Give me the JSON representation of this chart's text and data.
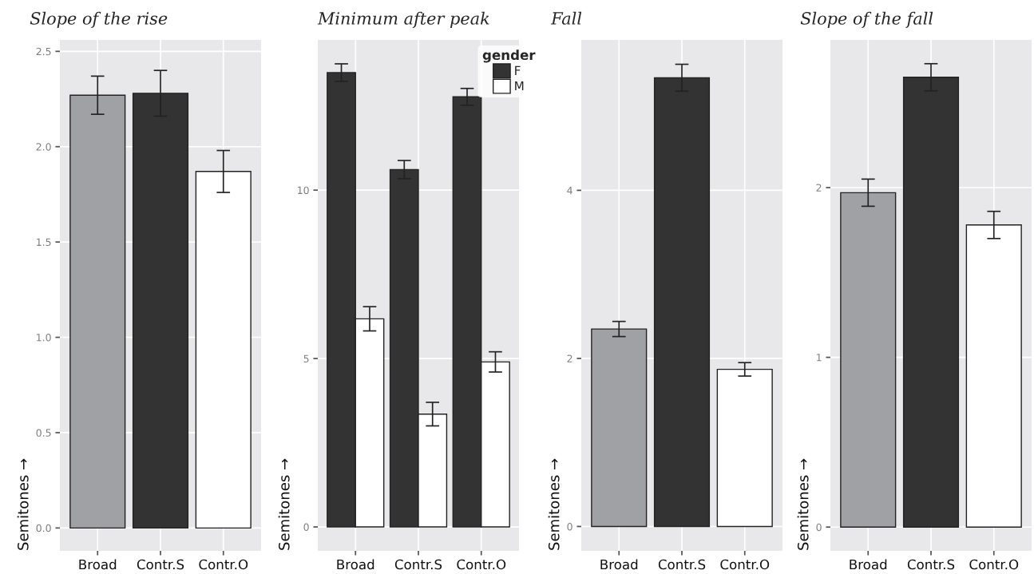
{
  "chart_data": [
    {
      "type": "bar",
      "title": "Slope of the rise",
      "ylabel": "Semitones →",
      "categories": [
        "Broad",
        "Contr.S",
        "Contr.O"
      ],
      "values": [
        2.27,
        2.28,
        1.87
      ],
      "colors": [
        "#a0a1a5",
        "#333333",
        "#ffffff"
      ],
      "errors": [
        0.1,
        0.12,
        0.11
      ],
      "ylim": [
        -0.12,
        2.56
      ],
      "yticks": [
        {
          "value": 0,
          "label": "0.0"
        },
        {
          "value": 0.5,
          "label": "0.5"
        },
        {
          "value": 1,
          "label": "1.0"
        },
        {
          "value": 1.5,
          "label": "1.5"
        },
        {
          "value": 2,
          "label": "2.0"
        },
        {
          "value": 2.5,
          "label": "2.5"
        }
      ],
      "grid": true
    },
    {
      "type": "bar",
      "title": "Minimum after peak",
      "ylabel": "Semitones →",
      "categories": [
        "Broad",
        "Contr.S",
        "Contr.O"
      ],
      "legend_title": "gender",
      "legend": "top right",
      "series": [
        {
          "name": "F",
          "color": "#333333",
          "values": [
            13.49,
            10.61,
            12.77
          ],
          "errors": [
            0.26,
            0.27,
            0.25
          ]
        },
        {
          "name": "M",
          "color": "#ffffff",
          "values": [
            6.18,
            3.35,
            4.9
          ],
          "errors": [
            0.36,
            0.35,
            0.3
          ]
        }
      ],
      "ylim": [
        -0.71,
        14.46
      ],
      "yticks": [
        0,
        5,
        10
      ],
      "grid": true
    },
    {
      "type": "bar",
      "title": "Fall",
      "ylabel": "Semitones →",
      "categories": [
        "Broad",
        "Contr.S",
        "Contr.O"
      ],
      "values": [
        2.35,
        5.34,
        1.87
      ],
      "colors": [
        "#a0a1a5",
        "#333333",
        "#ffffff"
      ],
      "errors": [
        0.09,
        0.16,
        0.08
      ],
      "ylim": [
        -0.29,
        5.79
      ],
      "yticks": [
        0,
        2,
        4
      ],
      "grid": true
    },
    {
      "type": "bar",
      "title": "Slope of the fall",
      "ylabel": "Semitones →",
      "categories": [
        "Broad",
        "Contr.S",
        "Contr.O"
      ],
      "values": [
        1.97,
        2.65,
        1.78
      ],
      "colors": [
        "#a0a1a5",
        "#333333",
        "#ffffff"
      ],
      "errors": [
        0.08,
        0.08,
        0.08
      ],
      "ylim": [
        -0.14,
        2.87
      ],
      "yticks": [
        0,
        1,
        2
      ],
      "grid": true
    }
  ]
}
